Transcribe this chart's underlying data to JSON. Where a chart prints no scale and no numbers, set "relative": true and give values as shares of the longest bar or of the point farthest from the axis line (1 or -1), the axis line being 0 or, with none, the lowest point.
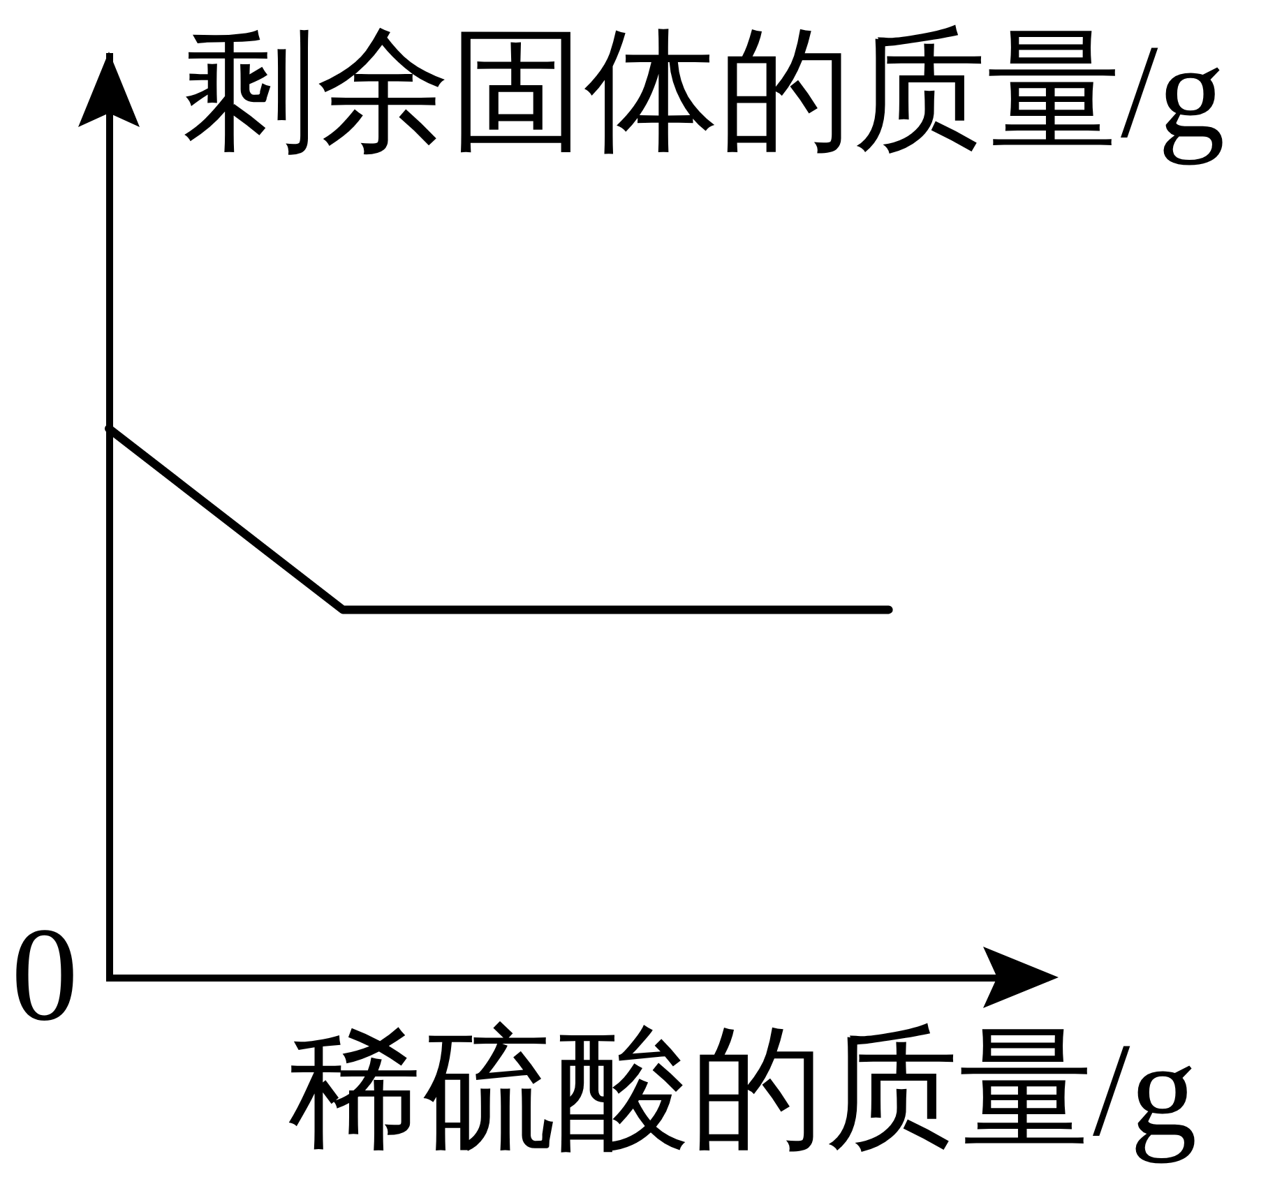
{
  "chart_data": {
    "type": "line",
    "xlabel": "稀硫酸的质量/g",
    "ylabel": "剩余固体的质量/g",
    "categories": [
      null,
      null,
      null,
      null,
      null,
      null,
      null,
      null,
      null,
      null,
      null
    ],
    "values": [
      1,
      0.89,
      0.78,
      0.67,
      0.67,
      0.67,
      0.67,
      0.67,
      0.67,
      0.67,
      0.67
    ],
    "color": "#000000",
    "relative": true,
    "line_style": "solid",
    "annotations": [
      "0"
    ]
  }
}
